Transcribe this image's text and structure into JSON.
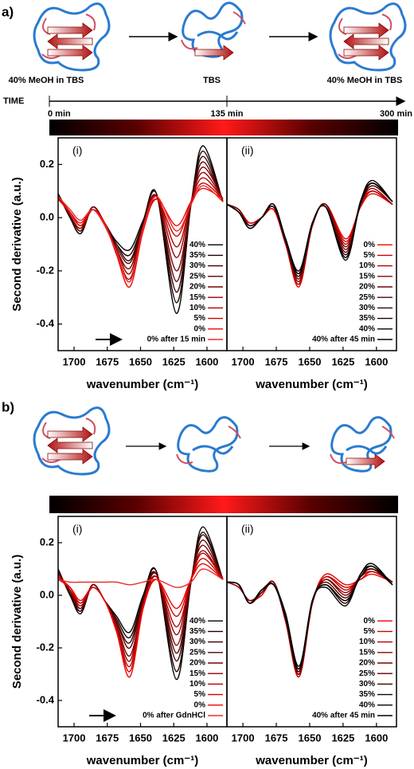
{
  "panel_a": {
    "label": "a)",
    "stages": [
      "40% MeOH in TBS",
      "TBS",
      "40% MeOH in TBS"
    ],
    "time_label": "TIME",
    "time_ticks": [
      "0 min",
      "135 min",
      "300 min"
    ]
  },
  "panel_b": {
    "label": "b)"
  },
  "chart_data": [
    {
      "type": "line",
      "panel_label": "(i)",
      "x_label": "wavenumber (cm⁻¹)",
      "y_label": "Second derivative (a.u.)",
      "x": [
        1712,
        1703,
        1695,
        1686,
        1677,
        1668,
        1658,
        1648,
        1638,
        1623,
        1612,
        1603,
        1588
      ],
      "xlim": [
        1712,
        1585
      ],
      "xticks": [
        1700,
        1675,
        1650,
        1625,
        1600
      ],
      "ylim": [
        -0.5,
        0.3
      ],
      "yticks": [
        -0.4,
        -0.2,
        {
          "value": 0,
          "label": "0.0"
        },
        0.2
      ],
      "legend": "lower right",
      "series": [
        {
          "name": "40%",
          "color": "#000000",
          "values": [
            0.09,
            0.0,
            -0.06,
            0.04,
            -0.02,
            -0.09,
            -0.12,
            -0.01,
            0.09,
            -0.36,
            0.05,
            0.27,
            0.06
          ]
        },
        {
          "name": "35%",
          "color": "#1e0000",
          "values": [
            0.09,
            0.0,
            -0.06,
            0.04,
            -0.02,
            -0.1,
            -0.14,
            -0.02,
            0.09,
            -0.32,
            0.05,
            0.25,
            0.06
          ]
        },
        {
          "name": "30%",
          "color": "#3c0000",
          "values": [
            0.09,
            0.01,
            -0.05,
            0.04,
            -0.02,
            -0.1,
            -0.16,
            -0.02,
            0.09,
            -0.28,
            0.05,
            0.23,
            0.06
          ]
        },
        {
          "name": "25%",
          "color": "#5a0000",
          "values": [
            0.08,
            0.01,
            -0.05,
            0.04,
            -0.02,
            -0.11,
            -0.17,
            -0.03,
            0.08,
            -0.24,
            0.05,
            0.21,
            0.06
          ]
        },
        {
          "name": "20%",
          "color": "#780000",
          "values": [
            0.08,
            0.01,
            -0.04,
            0.04,
            -0.02,
            -0.12,
            -0.19,
            -0.03,
            0.08,
            -0.2,
            0.05,
            0.19,
            0.07
          ]
        },
        {
          "name": "15%",
          "color": "#960000",
          "values": [
            0.08,
            0.01,
            -0.04,
            0.03,
            -0.02,
            -0.12,
            -0.21,
            -0.03,
            0.08,
            -0.15,
            0.06,
            0.17,
            0.07
          ]
        },
        {
          "name": "10%",
          "color": "#b40000",
          "values": [
            0.08,
            0.02,
            -0.03,
            0.03,
            -0.02,
            -0.13,
            -0.23,
            -0.04,
            0.08,
            -0.11,
            0.06,
            0.15,
            0.07
          ]
        },
        {
          "name": "5%",
          "color": "#d20000",
          "values": [
            0.07,
            0.02,
            -0.03,
            0.03,
            -0.02,
            -0.13,
            -0.24,
            -0.04,
            0.07,
            -0.07,
            0.06,
            0.13,
            0.07
          ]
        },
        {
          "name": "0%",
          "color": "#f00000",
          "values": [
            0.07,
            0.02,
            -0.02,
            0.03,
            -0.02,
            -0.14,
            -0.26,
            -0.05,
            0.07,
            -0.03,
            0.06,
            0.11,
            0.07
          ]
        },
        {
          "name": "0% after 15 min",
          "color": "#e8302a",
          "values": [
            0.08,
            0.03,
            -0.01,
            0.03,
            -0.03,
            -0.13,
            -0.24,
            -0.04,
            0.08,
            -0.05,
            0.05,
            0.12,
            0.06
          ]
        }
      ]
    },
    {
      "type": "line",
      "panel_label": "(ii)",
      "x_label": "wavenumber (cm⁻¹)",
      "x": [
        1712,
        1703,
        1695,
        1686,
        1677,
        1668,
        1658,
        1648,
        1638,
        1623,
        1612,
        1603,
        1588
      ],
      "xlim": [
        1712,
        1585
      ],
      "xticks": [
        1700,
        1675,
        1650,
        1625,
        1600
      ],
      "ylim": [
        -0.5,
        0.3
      ],
      "legend": "lower right",
      "series": [
        {
          "name": "0%",
          "color": "#f00000",
          "values": [
            0.05,
            0.03,
            -0.02,
            0.0,
            0.03,
            -0.1,
            -0.26,
            -0.03,
            0.05,
            -0.08,
            0.04,
            0.09,
            0.05
          ]
        },
        {
          "name": "5%",
          "color": "#d20000",
          "values": [
            0.05,
            0.03,
            -0.02,
            0.0,
            0.03,
            -0.1,
            -0.25,
            -0.03,
            0.05,
            -0.09,
            0.04,
            0.1,
            0.05
          ]
        },
        {
          "name": "10%",
          "color": "#b40000",
          "values": [
            0.05,
            0.03,
            -0.03,
            0.0,
            0.04,
            -0.1,
            -0.25,
            -0.03,
            0.05,
            -0.1,
            0.05,
            0.1,
            0.05
          ]
        },
        {
          "name": "15%",
          "color": "#960000",
          "values": [
            0.05,
            0.03,
            -0.03,
            0.0,
            0.04,
            -0.09,
            -0.24,
            -0.03,
            0.05,
            -0.11,
            0.05,
            0.11,
            0.05
          ]
        },
        {
          "name": "20%",
          "color": "#780000",
          "values": [
            0.05,
            0.03,
            -0.03,
            0.0,
            0.04,
            -0.09,
            -0.23,
            -0.03,
            0.05,
            -0.12,
            0.05,
            0.12,
            0.06
          ]
        },
        {
          "name": "25%",
          "color": "#5a0000",
          "values": [
            0.05,
            0.02,
            -0.03,
            0.0,
            0.04,
            -0.09,
            -0.22,
            -0.02,
            0.04,
            -0.13,
            0.05,
            0.12,
            0.06
          ]
        },
        {
          "name": "30%",
          "color": "#3c0000",
          "values": [
            0.05,
            0.02,
            -0.03,
            0.0,
            0.04,
            -0.09,
            -0.22,
            -0.02,
            0.04,
            -0.14,
            0.05,
            0.13,
            0.06
          ]
        },
        {
          "name": "35%",
          "color": "#1e0000",
          "values": [
            0.05,
            0.02,
            -0.04,
            0.0,
            0.05,
            -0.08,
            -0.21,
            -0.02,
            0.04,
            -0.15,
            0.06,
            0.13,
            0.06
          ]
        },
        {
          "name": "40%",
          "color": "#000000",
          "values": [
            0.05,
            0.02,
            -0.04,
            0.0,
            0.05,
            -0.08,
            -0.2,
            -0.02,
            0.04,
            -0.16,
            0.06,
            0.14,
            0.06
          ]
        },
        {
          "name": "40% after 45 min",
          "color": "#000000",
          "values": [
            0.05,
            0.02,
            -0.04,
            0.0,
            0.05,
            -0.08,
            -0.21,
            -0.02,
            0.04,
            -0.15,
            0.06,
            0.13,
            0.06
          ]
        }
      ]
    },
    {
      "type": "line",
      "panel_label": "(i)",
      "x_label": "wavenumber (cm⁻¹)",
      "y_label": "Second derivative (a.u.)",
      "x": [
        1712,
        1703,
        1695,
        1686,
        1677,
        1668,
        1658,
        1648,
        1638,
        1623,
        1612,
        1603,
        1588
      ],
      "xlim": [
        1712,
        1585
      ],
      "xticks": [
        1700,
        1675,
        1650,
        1625,
        1600
      ],
      "ylim": [
        -0.5,
        0.3
      ],
      "yticks": [
        -0.4,
        -0.2,
        {
          "value": 0,
          "label": "0.0"
        },
        0.2
      ],
      "legend": "lower right",
      "series": [
        {
          "name": "40%",
          "color": "#000000",
          "values": [
            0.1,
            0.0,
            -0.07,
            0.04,
            -0.02,
            -0.08,
            -0.14,
            0.0,
            0.09,
            -0.32,
            0.05,
            0.26,
            0.06
          ]
        },
        {
          "name": "35%",
          "color": "#1e0000",
          "values": [
            0.1,
            0.0,
            -0.06,
            0.04,
            -0.02,
            -0.09,
            -0.16,
            -0.01,
            0.09,
            -0.29,
            0.05,
            0.24,
            0.06
          ]
        },
        {
          "name": "30%",
          "color": "#3c0000",
          "values": [
            0.09,
            0.01,
            -0.06,
            0.04,
            -0.02,
            -0.1,
            -0.18,
            -0.01,
            0.08,
            -0.25,
            0.05,
            0.23,
            0.06
          ]
        },
        {
          "name": "25%",
          "color": "#5a0000",
          "values": [
            0.09,
            0.01,
            -0.05,
            0.04,
            -0.02,
            -0.1,
            -0.2,
            -0.02,
            0.08,
            -0.22,
            0.05,
            0.21,
            0.06
          ]
        },
        {
          "name": "20%",
          "color": "#780000",
          "values": [
            0.08,
            0.02,
            -0.05,
            0.04,
            -0.02,
            -0.11,
            -0.23,
            -0.03,
            0.08,
            -0.19,
            0.06,
            0.19,
            0.06
          ]
        },
        {
          "name": "15%",
          "color": "#960000",
          "values": [
            0.08,
            0.02,
            -0.04,
            0.03,
            -0.02,
            -0.12,
            -0.25,
            -0.03,
            0.07,
            -0.15,
            0.06,
            0.17,
            0.06
          ]
        },
        {
          "name": "10%",
          "color": "#b40000",
          "values": [
            0.07,
            0.02,
            -0.03,
            0.03,
            -0.02,
            -0.13,
            -0.27,
            -0.04,
            0.07,
            -0.12,
            0.06,
            0.16,
            0.06
          ]
        },
        {
          "name": "5%",
          "color": "#d20000",
          "values": [
            0.07,
            0.03,
            -0.03,
            0.03,
            -0.02,
            -0.13,
            -0.29,
            -0.04,
            0.06,
            -0.08,
            0.06,
            0.14,
            0.06
          ]
        },
        {
          "name": "0%",
          "color": "#f00000",
          "values": [
            0.06,
            0.03,
            -0.02,
            0.03,
            -0.02,
            -0.14,
            -0.31,
            -0.05,
            0.06,
            -0.05,
            0.06,
            0.12,
            0.06
          ]
        },
        {
          "name": "0% after GdnHCl",
          "color": "#e8302a",
          "values": [
            0.06,
            0.05,
            0.05,
            0.05,
            0.05,
            0.05,
            0.04,
            0.05,
            0.06,
            0.03,
            0.05,
            0.1,
            0.06
          ]
        }
      ]
    },
    {
      "type": "line",
      "panel_label": "(ii)",
      "x_label": "wavenumber (cm⁻¹)",
      "x": [
        1712,
        1703,
        1695,
        1686,
        1677,
        1668,
        1658,
        1648,
        1638,
        1623,
        1612,
        1603,
        1588
      ],
      "xlim": [
        1712,
        1585
      ],
      "xticks": [
        1700,
        1675,
        1650,
        1625,
        1600
      ],
      "ylim": [
        -0.5,
        0.3
      ],
      "legend": "lower right",
      "series": [
        {
          "name": "0%",
          "color": "#f00000",
          "values": [
            0.05,
            0.03,
            -0.02,
            0.0,
            0.05,
            -0.1,
            -0.31,
            -0.03,
            0.08,
            0.04,
            0.06,
            0.08,
            0.05
          ]
        },
        {
          "name": "5%",
          "color": "#d20000",
          "values": [
            0.05,
            0.03,
            -0.02,
            0.0,
            0.05,
            -0.1,
            -0.31,
            -0.03,
            0.07,
            0.03,
            0.06,
            0.09,
            0.05
          ]
        },
        {
          "name": "10%",
          "color": "#b40000",
          "values": [
            0.05,
            0.03,
            -0.02,
            0.01,
            0.05,
            -0.1,
            -0.3,
            -0.03,
            0.07,
            0.02,
            0.07,
            0.09,
            0.05
          ]
        },
        {
          "name": "15%",
          "color": "#960000",
          "values": [
            0.05,
            0.03,
            -0.02,
            0.01,
            0.05,
            -0.09,
            -0.3,
            -0.03,
            0.06,
            0.01,
            0.07,
            0.1,
            0.05
          ]
        },
        {
          "name": "20%",
          "color": "#780000",
          "values": [
            0.05,
            0.04,
            -0.03,
            0.01,
            0.05,
            -0.09,
            -0.3,
            -0.03,
            0.06,
            0.0,
            0.07,
            0.1,
            0.05
          ]
        },
        {
          "name": "25%",
          "color": "#5a0000",
          "values": [
            0.05,
            0.04,
            -0.03,
            0.01,
            0.04,
            -0.09,
            -0.29,
            -0.02,
            0.05,
            -0.01,
            0.07,
            0.1,
            0.04
          ]
        },
        {
          "name": "30%",
          "color": "#3c0000",
          "values": [
            0.05,
            0.04,
            -0.03,
            0.02,
            0.04,
            -0.09,
            -0.29,
            -0.02,
            0.04,
            -0.02,
            0.07,
            0.11,
            0.04
          ]
        },
        {
          "name": "35%",
          "color": "#1e0000",
          "values": [
            0.05,
            0.04,
            -0.03,
            0.02,
            0.04,
            -0.08,
            -0.28,
            -0.02,
            0.04,
            -0.03,
            0.08,
            0.11,
            0.04
          ]
        },
        {
          "name": "40%",
          "color": "#000000",
          "values": [
            0.05,
            0.04,
            -0.03,
            0.02,
            0.04,
            -0.08,
            -0.28,
            -0.02,
            0.03,
            -0.04,
            0.08,
            0.12,
            0.04
          ]
        },
        {
          "name": "40% after 45 min",
          "color": "#000000",
          "values": [
            0.05,
            0.04,
            -0.03,
            0.02,
            0.04,
            -0.07,
            -0.27,
            -0.02,
            0.04,
            -0.02,
            0.07,
            0.11,
            0.04
          ]
        }
      ]
    }
  ]
}
